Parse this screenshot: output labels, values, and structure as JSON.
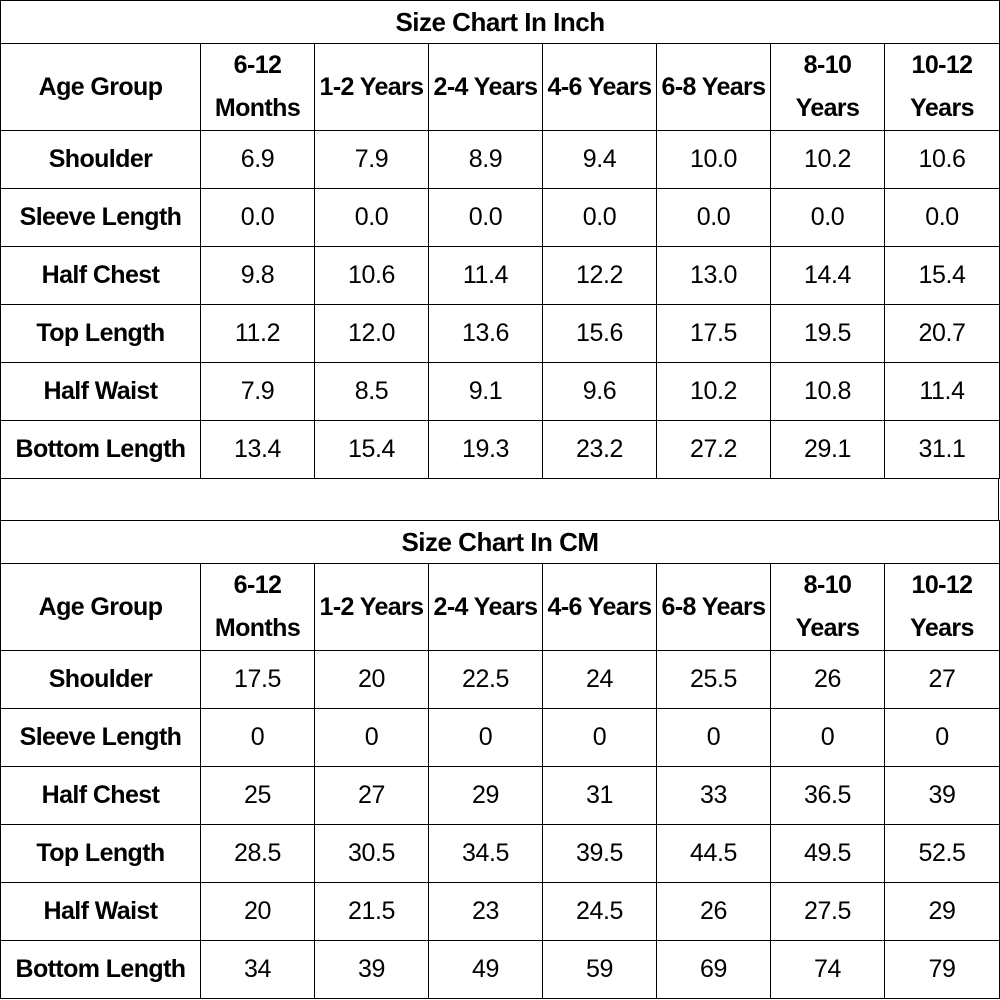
{
  "tables": [
    {
      "title": "Size Chart In Inch",
      "header": {
        "label": "Age Group",
        "columns": [
          [
            "6-12",
            "Months"
          ],
          [
            "1-2 Years"
          ],
          [
            "2-4 Years"
          ],
          [
            "4-6 Years"
          ],
          [
            "6-8 Years"
          ],
          [
            "8-10",
            "Years"
          ],
          [
            "10-12",
            "Years"
          ]
        ]
      },
      "rows": [
        {
          "label": "Shoulder",
          "values": [
            "6.9",
            "7.9",
            "8.9",
            "9.4",
            "10.0",
            "10.2",
            "10.6"
          ]
        },
        {
          "label": "Sleeve Length",
          "values": [
            "0.0",
            "0.0",
            "0.0",
            "0.0",
            "0.0",
            "0.0",
            "0.0"
          ]
        },
        {
          "label": "Half Chest",
          "values": [
            "9.8",
            "10.6",
            "11.4",
            "12.2",
            "13.0",
            "14.4",
            "15.4"
          ]
        },
        {
          "label": "Top Length",
          "values": [
            "11.2",
            "12.0",
            "13.6",
            "15.6",
            "17.5",
            "19.5",
            "20.7"
          ]
        },
        {
          "label": "Half Waist",
          "values": [
            "7.9",
            "8.5",
            "9.1",
            "9.6",
            "10.2",
            "10.8",
            "11.4"
          ]
        },
        {
          "label": "Bottom Length",
          "values": [
            "13.4",
            "15.4",
            "19.3",
            "23.2",
            "27.2",
            "29.1",
            "31.1"
          ]
        }
      ]
    },
    {
      "title": "Size Chart In CM",
      "header": {
        "label": "Age Group",
        "columns": [
          [
            "6-12",
            "Months"
          ],
          [
            "1-2 Years"
          ],
          [
            "2-4 Years"
          ],
          [
            "4-6 Years"
          ],
          [
            "6-8 Years"
          ],
          [
            "8-10",
            "Years"
          ],
          [
            "10-12",
            "Years"
          ]
        ]
      },
      "rows": [
        {
          "label": "Shoulder",
          "values": [
            "17.5",
            "20",
            "22.5",
            "24",
            "25.5",
            "26",
            "27"
          ]
        },
        {
          "label": "Sleeve Length",
          "values": [
            "0",
            "0",
            "0",
            "0",
            "0",
            "0",
            "0"
          ]
        },
        {
          "label": "Half Chest",
          "values": [
            "25",
            "27",
            "29",
            "31",
            "33",
            "36.5",
            "39"
          ]
        },
        {
          "label": "Top Length",
          "values": [
            "28.5",
            "30.5",
            "34.5",
            "39.5",
            "44.5",
            "49.5",
            "52.5"
          ]
        },
        {
          "label": "Half Waist",
          "values": [
            "20",
            "21.5",
            "23",
            "24.5",
            "26",
            "27.5",
            "29"
          ]
        },
        {
          "label": "Bottom Length",
          "values": [
            "34",
            "39",
            "49",
            "59",
            "69",
            "74",
            "79"
          ]
        }
      ]
    }
  ]
}
